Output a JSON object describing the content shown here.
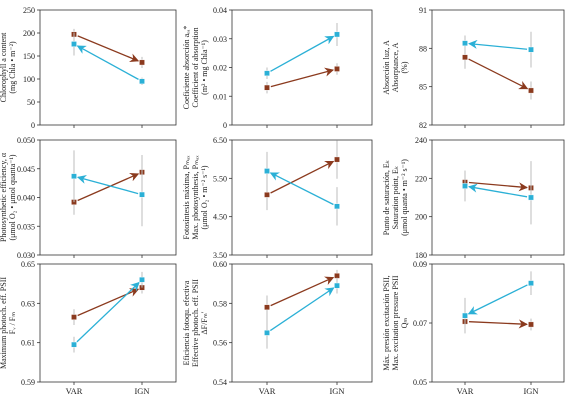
{
  "colors": {
    "VAR_to_IGN_brown": "#8B3A1E",
    "cyan_series": "#2BB0D6",
    "error_bar": "#bdbdbd",
    "axis": "#333333"
  },
  "categories": [
    "VAR",
    "IGN"
  ],
  "chart_data": [
    {
      "type": "line",
      "categories": [
        "VAR",
        "IGN"
      ],
      "ylabel_lines": [
        "Contenido clorofila a",
        "Chlorophyll a content",
        "(mg Chla • m⁻²)"
      ],
      "ylim": [
        0,
        250
      ],
      "yticks": [
        "0",
        "50",
        "100",
        "150",
        "200",
        "250"
      ],
      "series": [
        {
          "values": [
            197,
            136
          ],
          "errors": [
            12,
            12
          ],
          "color": "#8B3A1E",
          "arrow": "to_second"
        },
        {
          "values": [
            176,
            95
          ],
          "errors": [
            25,
            8
          ],
          "color": "#2BB0D6",
          "arrow": "to_first"
        }
      ]
    },
    {
      "type": "line",
      "categories": [
        "VAR",
        "IGN"
      ],
      "ylabel_lines": [
        "Coeficiente absorción aₑₐ*",
        "Coefficient of absorption",
        "(m² • mg Chla⁻¹)"
      ],
      "ylim": [
        0.0,
        0.04
      ],
      "yticks": [
        "0",
        "0.01",
        "0.02",
        "0.03",
        "0.04"
      ],
      "series": [
        {
          "values": [
            0.013,
            0.0195
          ],
          "errors": [
            0.002,
            0.002
          ],
          "color": "#8B3A1E",
          "arrow": "to_second"
        },
        {
          "values": [
            0.018,
            0.0315
          ],
          "errors": [
            0.002,
            0.004
          ],
          "color": "#2BB0D6",
          "arrow": "to_second"
        }
      ]
    },
    {
      "type": "line",
      "categories": [
        "VAR",
        "IGN"
      ],
      "ylabel_lines": [
        "Absorción luz, A",
        "Absorptance, A",
        "(%)"
      ],
      "ylim": [
        82,
        91
      ],
      "yticks": [
        "82",
        "85",
        "88",
        "91"
      ],
      "series": [
        {
          "values": [
            87.3,
            84.7
          ],
          "errors": [
            0.9,
            0.7
          ],
          "color": "#8B3A1E",
          "arrow": "to_second"
        },
        {
          "values": [
            88.4,
            87.9
          ],
          "errors": [
            0.6,
            1.4
          ],
          "color": "#2BB0D6",
          "arrow": "to_first"
        }
      ]
    },
    {
      "type": "line",
      "categories": [
        "VAR",
        "IGN"
      ],
      "ylabel_lines": [
        "Eficiencia fotosintética, α",
        "Photosynthetic efficiency, α",
        "(μmol O₂ • μmol quanta⁻¹)"
      ],
      "ylim": [
        0.03,
        0.05
      ],
      "yticks": [
        "0.030",
        "0.035",
        "0.040",
        "0.045",
        "0.050"
      ],
      "series": [
        {
          "values": [
            0.0392,
            0.0444
          ],
          "errors": [
            0.0022,
            0.003
          ],
          "color": "#8B3A1E",
          "arrow": "to_second"
        },
        {
          "values": [
            0.0437,
            0.0405
          ],
          "errors": [
            0.0045,
            0.0055
          ],
          "color": "#2BB0D6",
          "arrow": "to_first"
        }
      ]
    },
    {
      "type": "line",
      "categories": [
        "VAR",
        "IGN"
      ],
      "ylabel_lines": [
        "Fotosíntesis máxima, Pₘₐₓ",
        "Max. photosynthesis, Pₘₐₓ",
        "(μmol O₂ • m⁻² s⁻¹)"
      ],
      "ylim": [
        3.5,
        6.5
      ],
      "yticks": [
        "3.50",
        "4.50",
        "5.50",
        "6.50"
      ],
      "series": [
        {
          "values": [
            5.07,
            5.99
          ],
          "errors": [
            0.4,
            0.5
          ],
          "color": "#8B3A1E",
          "arrow": "to_second"
        },
        {
          "values": [
            5.69,
            4.77
          ],
          "errors": [
            0.5,
            0.5
          ],
          "color": "#2BB0D6",
          "arrow": "to_first"
        }
      ]
    },
    {
      "type": "line",
      "categories": [
        "VAR",
        "IGN"
      ],
      "ylabel_lines": [
        "Punto de saturación, Eₖ",
        "Saturation point, Eₖ",
        "(μmol quanta • m⁻² s⁻¹)"
      ],
      "ylim": [
        180,
        240
      ],
      "yticks": [
        "180",
        "200",
        "220",
        "240"
      ],
      "series": [
        {
          "values": [
            218,
            215
          ],
          "errors": [
            6,
            14
          ],
          "color": "#8B3A1E",
          "arrow": "to_second"
        },
        {
          "values": [
            216,
            210
          ],
          "errors": [
            8,
            14
          ],
          "color": "#2BB0D6",
          "arrow": "to_first"
        }
      ]
    },
    {
      "type": "line",
      "categories": [
        "VAR",
        "IGN"
      ],
      "ylabel_lines": [
        "Máxima eficiencia fotoqu.",
        "Maximum photoch. eff. PSII",
        "Fᵥ / Fₘ"
      ],
      "ylim": [
        0.59,
        0.65
      ],
      "yticks": [
        "0.59",
        "0.61",
        "0.63",
        "0.65"
      ],
      "series": [
        {
          "values": [
            0.623,
            0.638
          ],
          "errors": [
            0.004,
            0.003
          ],
          "color": "#8B3A1E",
          "arrow": "to_second"
        },
        {
          "values": [
            0.609,
            0.642
          ],
          "errors": [
            0.004,
            0.004
          ],
          "color": "#2BB0D6",
          "arrow": "to_second"
        }
      ]
    },
    {
      "type": "line",
      "categories": [
        "VAR",
        "IGN"
      ],
      "ylabel_lines": [
        "Eficiencia fotoqu. efectiva",
        "Effective photoch. eff. PSII",
        "ΔF/Fₘ′"
      ],
      "ylim": [
        0.54,
        0.6
      ],
      "yticks": [
        "0.54",
        "0.56",
        "0.58",
        "0.60"
      ],
      "series": [
        {
          "values": [
            0.578,
            0.594
          ],
          "errors": [
            0.006,
            0.003
          ],
          "color": "#8B3A1E",
          "arrow": "to_second"
        },
        {
          "values": [
            0.565,
            0.589
          ],
          "errors": [
            0.008,
            0.004
          ],
          "color": "#2BB0D6",
          "arrow": "to_second"
        }
      ]
    },
    {
      "type": "line",
      "categories": [
        "VAR",
        "IGN"
      ],
      "ylabel_lines": [
        "Máx. presión excitación PSII,",
        "Max. excitation pressure PSII",
        "Qₘ"
      ],
      "ylim": [
        0.05,
        0.09
      ],
      "yticks": [
        "0.05",
        "0.07",
        "0.09"
      ],
      "series": [
        {
          "values": [
            0.0705,
            0.0695
          ],
          "errors": [
            0.003,
            0.002
          ],
          "color": "#8B3A1E",
          "arrow": "to_second"
        },
        {
          "values": [
            0.0725,
            0.0835
          ],
          "errors": [
            0.006,
            0.004
          ],
          "color": "#2BB0D6",
          "arrow": "to_first"
        }
      ]
    }
  ]
}
